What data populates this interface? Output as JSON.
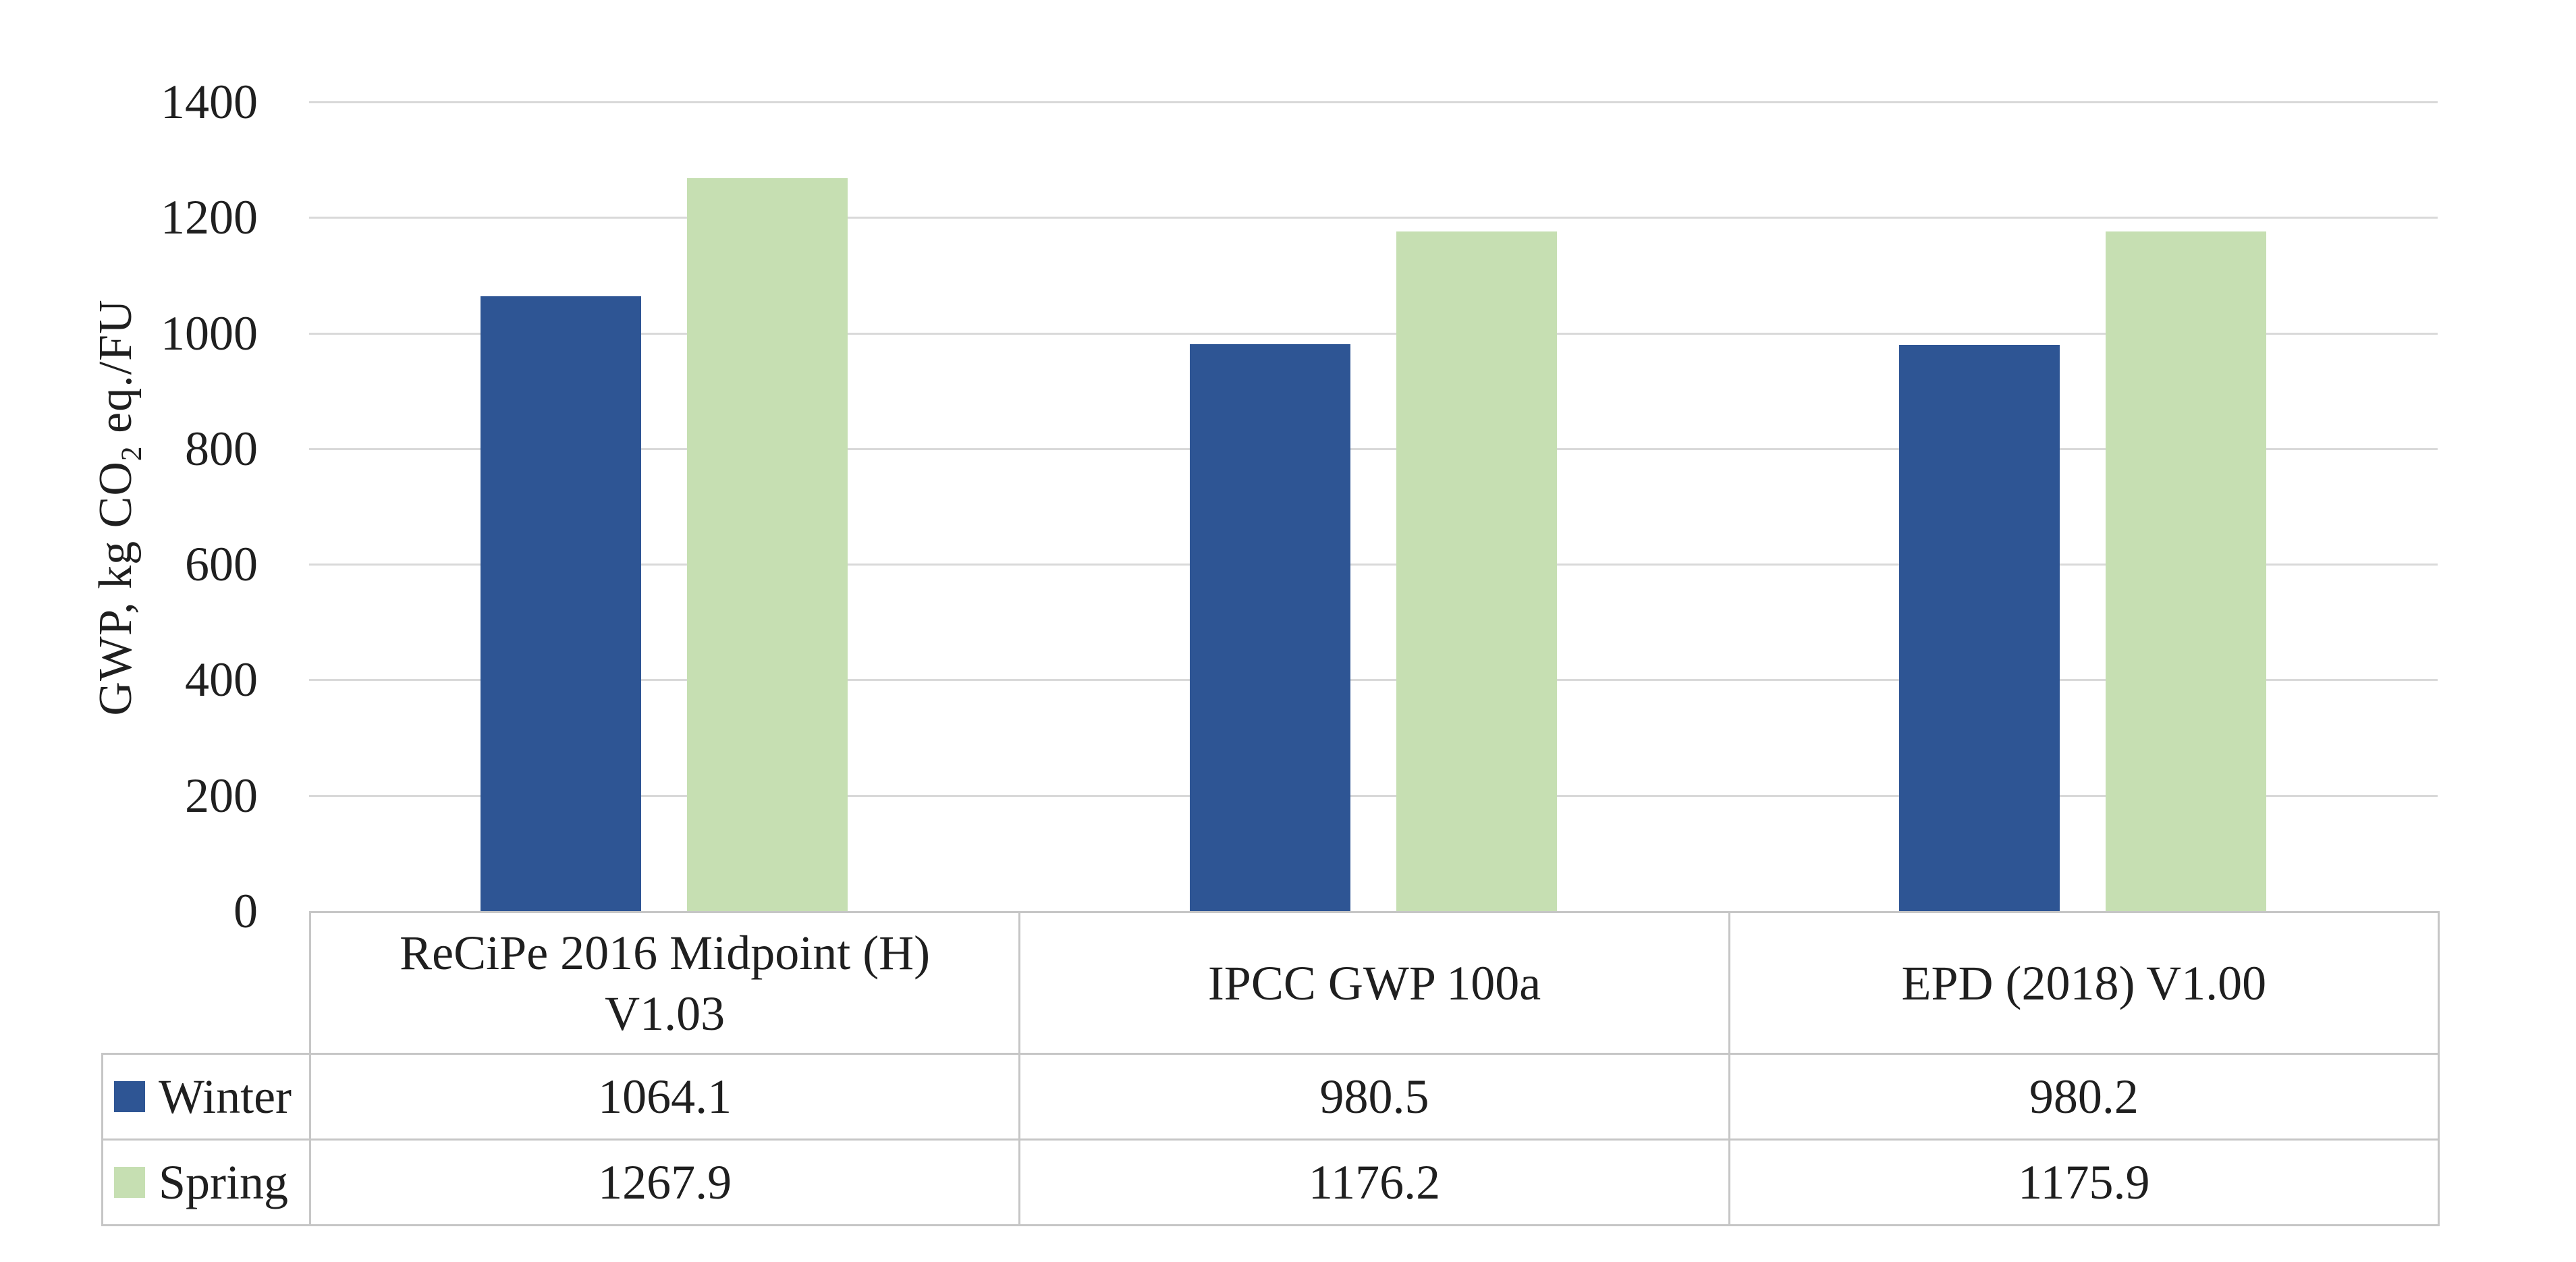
{
  "y_axis": {
    "title_pre": "GWP, kg CO",
    "title_sub": "2",
    "title_post": " eq./FU",
    "tick_values": [
      0,
      200,
      400,
      600,
      800,
      1000,
      1200,
      1400
    ]
  },
  "chart_data": {
    "type": "bar",
    "title": "",
    "xlabel": "",
    "ylabel": "GWP, kg CO2 eq./FU",
    "categories": [
      "ReCiPe 2016 Midpoint (H)\nV1.03",
      "IPCC GWP 100a",
      "EPD (2018) V1.00"
    ],
    "series": [
      {
        "name": "Winter",
        "color": "#2e5594",
        "values": [
          1064.1,
          980.5,
          980.2
        ]
      },
      {
        "name": "Spring",
        "color": "#c6dfb2",
        "values": [
          1267.9,
          1176.2,
          1175.9
        ]
      }
    ],
    "ylim": [
      0,
      1400
    ],
    "ytick_step": 200,
    "grid": true,
    "gridline_color": "#d9d9d9",
    "table_border_color": "#c6c6c6",
    "legend_position": "table-rows-left",
    "value_decimals": 1
  }
}
